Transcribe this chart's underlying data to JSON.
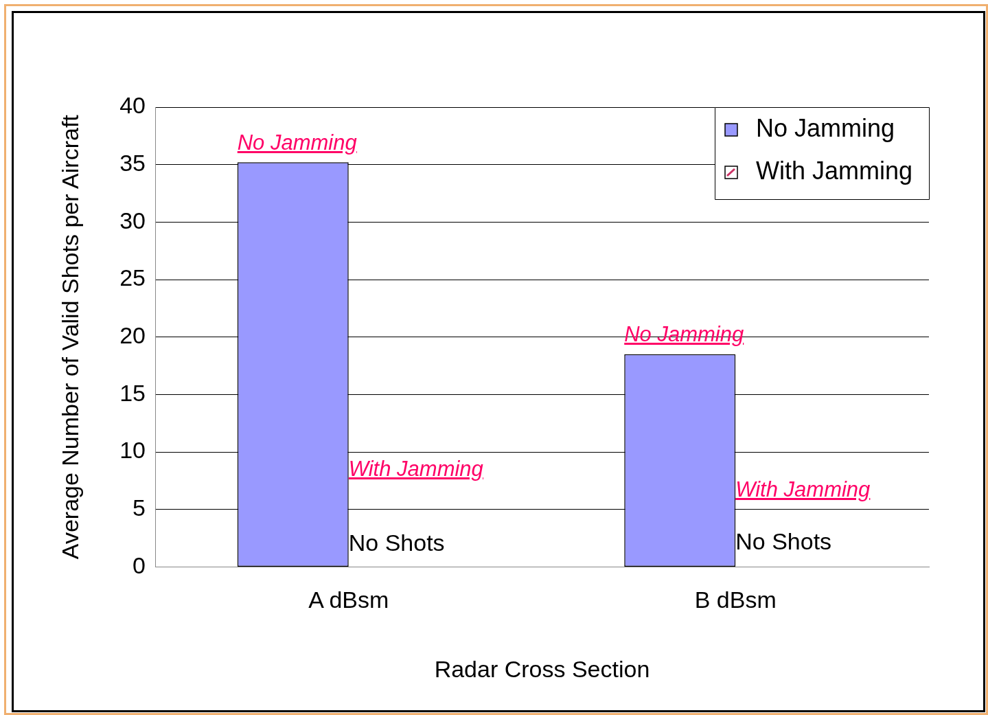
{
  "chart_data": {
    "type": "bar",
    "xlabel": "Radar Cross Section",
    "ylabel": "Average Number of Valid Shots per Aircraft",
    "categories": [
      "A dBsm",
      "B dBsm"
    ],
    "series": [
      {
        "name": "No Jamming",
        "color": "#9999ff",
        "values": [
          35.2,
          18.5
        ]
      },
      {
        "name": "With Jamming",
        "color": "#cc3366",
        "values": [
          0,
          0
        ]
      }
    ],
    "ylim": [
      0,
      40
    ],
    "yticks": [
      0,
      5,
      10,
      15,
      20,
      25,
      30,
      35,
      40
    ],
    "grid": "y",
    "legend": "top right",
    "annotations": [
      {
        "text": "No Jamming",
        "x": "A dBsm",
        "y": 35.2
      },
      {
        "text": "With Jamming",
        "x": "A dBsm",
        "y": 7.9
      },
      {
        "text": "No Shots",
        "x": "A dBsm",
        "y": 1.4
      },
      {
        "text": "No Jamming",
        "x": "B dBsm",
        "y": 18.5
      },
      {
        "text": "With Jamming",
        "x": "B dBsm",
        "y": 6.1
      },
      {
        "text": "No Shots",
        "x": "B dBsm",
        "y": 1.5
      }
    ]
  }
}
